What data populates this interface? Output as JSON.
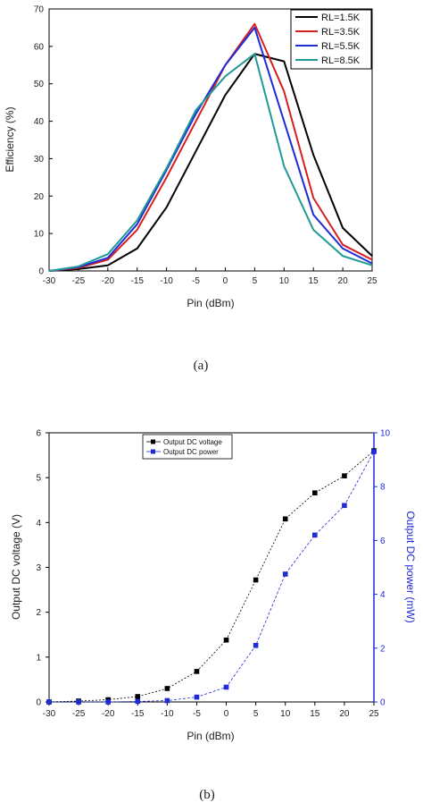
{
  "chart_data": [
    {
      "type": "line",
      "caption": "(a)",
      "xlabel": "Pin (dBm)",
      "ylabel": "Efficiency (%)",
      "xlim": [
        -30,
        25
      ],
      "ylim": [
        0,
        70
      ],
      "xticks": [
        -30,
        -25,
        -20,
        -15,
        -10,
        -5,
        0,
        5,
        10,
        15,
        20,
        25
      ],
      "yticks": [
        0,
        10,
        20,
        30,
        40,
        50,
        60,
        70
      ],
      "grid": false,
      "legend_position": "top-right",
      "x": [
        -30,
        -25,
        -20,
        -15,
        -10,
        -5,
        0,
        5,
        10,
        15,
        20,
        25
      ],
      "series": [
        {
          "name": "RL=1.5K",
          "color": "#000000",
          "values": [
            0,
            0.5,
            1.5,
            6,
            17,
            32,
            47,
            58,
            56,
            31,
            11.5,
            4
          ]
        },
        {
          "name": "RL=3.5K",
          "color": "#d62020",
          "values": [
            0,
            0.8,
            3,
            11,
            25,
            40,
            55,
            66,
            48,
            19.5,
            7,
            3
          ]
        },
        {
          "name": "RL=5.5K",
          "color": "#1f2bd6",
          "values": [
            0,
            1,
            3.5,
            12.5,
            27,
            42,
            55,
            65,
            40,
            15,
            6,
            2
          ]
        },
        {
          "name": "RL=8.5K",
          "color": "#1f9a96",
          "values": [
            0,
            1.2,
            4.5,
            13.5,
            27.5,
            43,
            52,
            58,
            28,
            11,
            4,
            1.5
          ]
        }
      ]
    },
    {
      "type": "line",
      "caption": "(b)",
      "xlabel": "Pin (dBm)",
      "ylabel": "Output DC voltage (V)",
      "ylabel_right": "Output DC power (mW)",
      "xlim": [
        -30,
        25
      ],
      "ylim": [
        0,
        6
      ],
      "ylim_right": [
        0,
        10
      ],
      "xticks": [
        -30,
        -25,
        -20,
        -15,
        -10,
        -5,
        0,
        5,
        10,
        15,
        20,
        25
      ],
      "yticks": [
        0,
        1,
        2,
        3,
        4,
        5,
        6
      ],
      "yticks_right": [
        0,
        2,
        4,
        6,
        8,
        10
      ],
      "right_axis_color": "#1f2bd6",
      "grid": false,
      "legend_position": "top-center",
      "x": [
        -30,
        -25,
        -20,
        -15,
        -10,
        -5,
        0,
        5,
        10,
        15,
        20,
        25
      ],
      "series": [
        {
          "name": "Output DC voltage",
          "axis": "left",
          "color": "#000000",
          "marker": "square",
          "values": [
            0,
            0.02,
            0.05,
            0.12,
            0.3,
            0.68,
            1.38,
            2.72,
            4.08,
            4.66,
            5.04,
            5.6
          ]
        },
        {
          "name": "Output DC power",
          "axis": "right",
          "color": "#1f2bd6",
          "marker": "square",
          "values": [
            0,
            0,
            0,
            0.02,
            0.05,
            0.18,
            0.55,
            2.1,
            4.75,
            6.2,
            7.3,
            9.3
          ]
        }
      ]
    }
  ]
}
